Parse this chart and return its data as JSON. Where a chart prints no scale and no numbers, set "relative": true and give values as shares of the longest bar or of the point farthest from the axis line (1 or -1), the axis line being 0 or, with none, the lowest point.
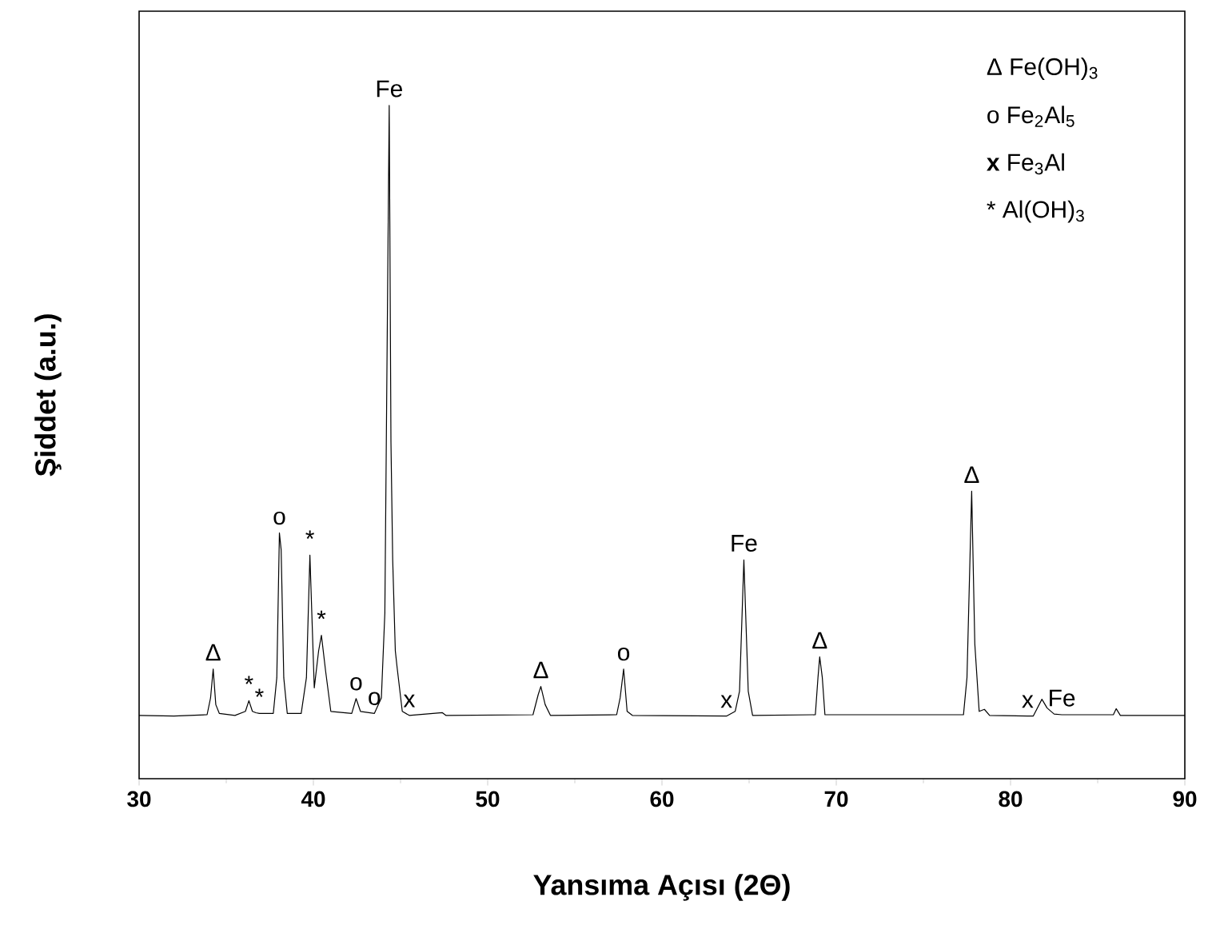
{
  "chart_data": {
    "type": "line",
    "relative": true,
    "xlabel": "Yansıma Açısı (2Θ)",
    "ylabel": "Şiddet (a.u.)",
    "xlim": [
      30,
      90
    ],
    "xticks": [
      30,
      40,
      50,
      60,
      70,
      80,
      90
    ],
    "tick_labels": "x",
    "grid": false,
    "series": [
      {
        "color": "#000000",
        "x": [
          30,
          32,
          33.9,
          34.1,
          34.25,
          34.4,
          34.6,
          35.5,
          36.1,
          36.3,
          36.5,
          36.7,
          36.9,
          37.7,
          37.9,
          38.05,
          38.15,
          38.3,
          38.5,
          39.3,
          39.6,
          39.8,
          40.05,
          40.3,
          40.46,
          40.7,
          41.0,
          42.2,
          42.45,
          42.7,
          43.5,
          43.9,
          44.1,
          44.25,
          44.35,
          44.45,
          44.55,
          44.7,
          44.8,
          45.1,
          45.5,
          47.4,
          47.6,
          52.6,
          52.9,
          53.05,
          53.3,
          53.6,
          57.4,
          57.6,
          57.8,
          58.0,
          58.3,
          63.7,
          64.2,
          64.45,
          64.7,
          64.95,
          65.2,
          68.8,
          68.95,
          69.05,
          69.2,
          69.35,
          77.3,
          77.5,
          77.77,
          77.95,
          78.2,
          78.5,
          78.8,
          80.98,
          81.3,
          81.8,
          82.1,
          82.5,
          82.94,
          85.9,
          86.06,
          86.3,
          90
        ],
        "values": [
          0.094,
          0.093,
          0.095,
          0.12,
          0.163,
          0.11,
          0.097,
          0.094,
          0.1,
          0.116,
          0.1,
          0.098,
          0.097,
          0.097,
          0.15,
          0.365,
          0.34,
          0.15,
          0.097,
          0.097,
          0.15,
          0.332,
          0.135,
          0.19,
          0.213,
          0.16,
          0.1,
          0.097,
          0.119,
          0.1,
          0.097,
          0.12,
          0.246,
          0.7,
          1.0,
          0.5,
          0.325,
          0.19,
          0.166,
          0.1,
          0.094,
          0.098,
          0.094,
          0.095,
          0.125,
          0.137,
          0.11,
          0.094,
          0.095,
          0.12,
          0.163,
          0.1,
          0.094,
          0.093,
          0.1,
          0.13,
          0.325,
          0.13,
          0.094,
          0.095,
          0.15,
          0.181,
          0.15,
          0.095,
          0.095,
          0.15,
          0.427,
          0.2,
          0.1,
          0.103,
          0.094,
          0.093,
          0.093,
          0.118,
          0.105,
          0.096,
          0.095,
          0.095,
          0.104,
          0.094,
          0.094
        ]
      }
    ],
    "annotations": [
      {
        "text": "Δ",
        "x": 34.25,
        "y": 0.163
      },
      {
        "text": "*",
        "x": 36.3,
        "y": 0.116
      },
      {
        "text": "*",
        "x": 36.9,
        "y": 0.097
      },
      {
        "text": "o",
        "x": 38.05,
        "y": 0.365
      },
      {
        "text": "*",
        "x": 39.8,
        "y": 0.332
      },
      {
        "text": "*",
        "x": 40.46,
        "y": 0.213
      },
      {
        "text": "o",
        "x": 42.45,
        "y": 0.119
      },
      {
        "text": "o",
        "x": 43.5,
        "y": 0.097
      },
      {
        "text": "x",
        "x": 45.5,
        "y": 0.094
      },
      {
        "text": "Fe",
        "x": 44.35,
        "y": 1.0
      },
      {
        "text": "Δ",
        "x": 53.05,
        "y": 0.137
      },
      {
        "text": "o",
        "x": 57.8,
        "y": 0.163
      },
      {
        "text": "x",
        "x": 63.7,
        "y": 0.093
      },
      {
        "text": "Fe",
        "x": 64.7,
        "y": 0.325
      },
      {
        "text": "Δ",
        "x": 69.05,
        "y": 0.181
      },
      {
        "text": "Δ",
        "x": 77.77,
        "y": 0.427
      },
      {
        "text": "x",
        "x": 80.98,
        "y": 0.093
      },
      {
        "text": "Fe",
        "x": 82.94,
        "y": 0.095
      },
      "Δ  Fe(OH)$_{3}$",
      "o Fe$_{2}$Al$_{5}$",
      "**x**  Fe$_{3}$Al",
      "*  Al(OH)$_{3}$"
    ]
  }
}
